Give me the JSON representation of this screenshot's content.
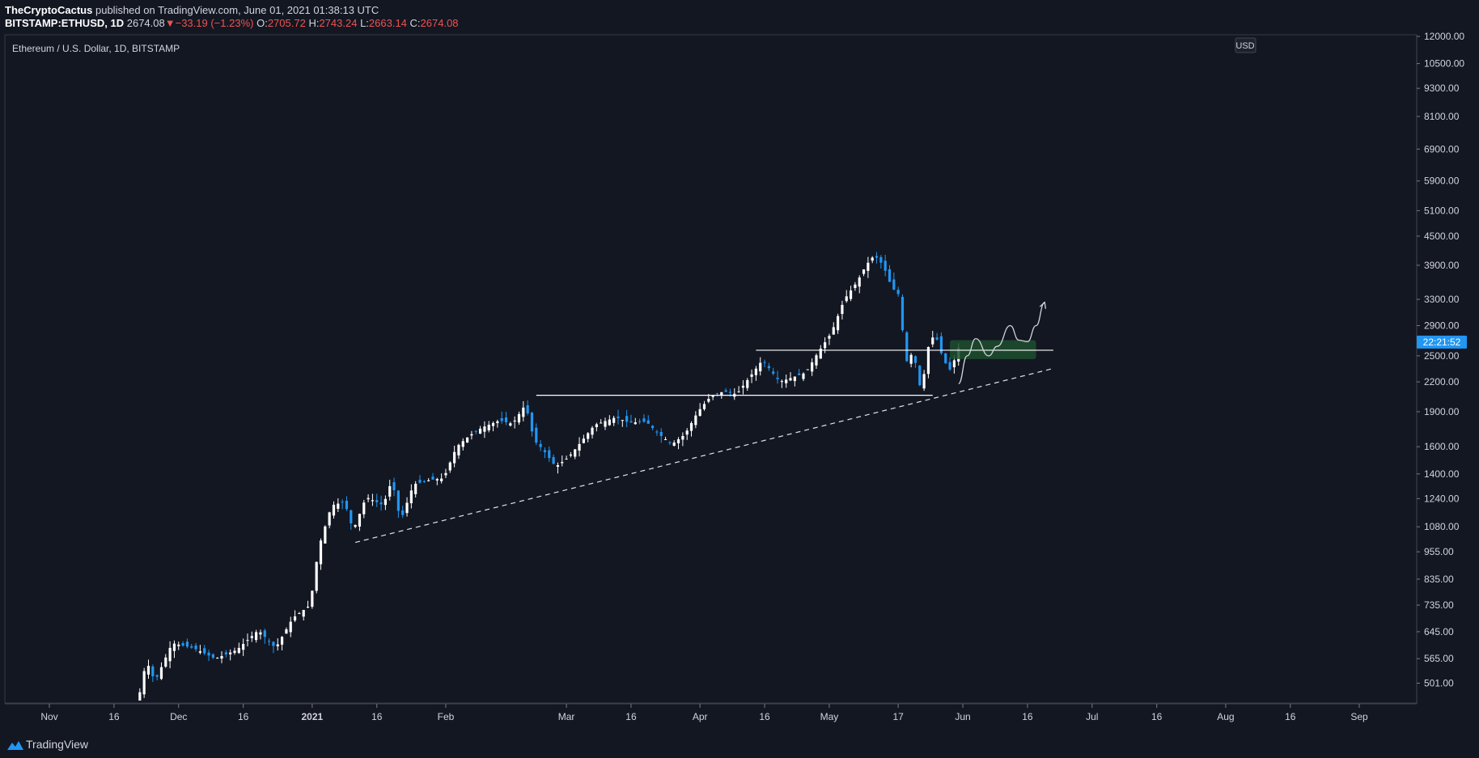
{
  "header": {
    "author": "TheCryptoCactus",
    "published": "published on TradingView.com, June 01, 2021 01:38:13 UTC",
    "symbol": "BITSTAMP:ETHUSD, 1D",
    "last": "2674.08",
    "change_arrow": "▼",
    "change": "−33.19 (−1.23%)",
    "o_label": "O:",
    "o": "2705.72",
    "h_label": "H:",
    "h": "2743.24",
    "l_label": "L:",
    "l": "2663.14",
    "c_label": "C:",
    "c": "2674.08"
  },
  "chart_data": {
    "type": "candlestick",
    "title": "Ethereum / U.S. Dollar, 1D, BITSTAMP",
    "currency": "USD",
    "y_scale": "log",
    "ylim": [
      460,
      12000
    ],
    "y_ticks": [
      "12000.00",
      "10500.00",
      "9300.00",
      "8100.00",
      "6900.00",
      "5900.00",
      "5100.00",
      "4500.00",
      "3900.00",
      "3300.00",
      "2900.00",
      "2500.00",
      "2200.00",
      "1900.00",
      "1600.00",
      "1400.00",
      "1240.00",
      "1080.00",
      "955.00",
      "835.00",
      "735.00",
      "645.00",
      "565.00",
      "501.00"
    ],
    "x_ticks": [
      {
        "label": "Nov",
        "date": "2020-11-01"
      },
      {
        "label": "16",
        "date": "2020-11-16"
      },
      {
        "label": "Dec",
        "date": "2020-12-01"
      },
      {
        "label": "16",
        "date": "2020-12-16"
      },
      {
        "label": "2021",
        "date": "2021-01-01",
        "bold": true
      },
      {
        "label": "16",
        "date": "2021-01-16"
      },
      {
        "label": "Feb",
        "date": "2021-02-01"
      },
      {
        "label": "Mar",
        "date": "2021-03-01"
      },
      {
        "label": "16",
        "date": "2021-03-16"
      },
      {
        "label": "Apr",
        "date": "2021-04-01"
      },
      {
        "label": "16",
        "date": "2021-04-16"
      },
      {
        "label": "May",
        "date": "2021-05-01"
      },
      {
        "label": "17",
        "date": "2021-05-17"
      },
      {
        "label": "Jun",
        "date": "2021-06-01"
      },
      {
        "label": "16",
        "date": "2021-06-16"
      },
      {
        "label": "Jul",
        "date": "2021-07-01"
      },
      {
        "label": "16",
        "date": "2021-07-16"
      },
      {
        "label": "Aug",
        "date": "2021-08-01"
      },
      {
        "label": "16",
        "date": "2021-08-16"
      },
      {
        "label": "Sep",
        "date": "2021-09-01"
      }
    ],
    "price_path": [
      [
        "2020-11-22",
        455
      ],
      [
        "2020-11-24",
        560
      ],
      [
        "2020-11-26",
        505
      ],
      [
        "2020-11-30",
        610
      ],
      [
        "2020-12-05",
        595
      ],
      [
        "2020-12-10",
        565
      ],
      [
        "2020-12-15",
        590
      ],
      [
        "2020-12-20",
        650
      ],
      [
        "2020-12-24",
        595
      ],
      [
        "2020-12-28",
        690
      ],
      [
        "2021-01-01",
        735
      ],
      [
        "2021-01-03",
        975
      ],
      [
        "2021-01-06",
        1200
      ],
      [
        "2021-01-09",
        1220
      ],
      [
        "2021-01-11",
        1060
      ],
      [
        "2021-01-14",
        1250
      ],
      [
        "2021-01-18",
        1200
      ],
      [
        "2021-01-20",
        1360
      ],
      [
        "2021-01-22",
        1110
      ],
      [
        "2021-01-25",
        1330
      ],
      [
        "2021-01-29",
        1360
      ],
      [
        "2021-02-01",
        1370
      ],
      [
        "2021-02-04",
        1600
      ],
      [
        "2021-02-07",
        1690
      ],
      [
        "2021-02-10",
        1760
      ],
      [
        "2021-02-14",
        1820
      ],
      [
        "2021-02-17",
        1790
      ],
      [
        "2021-02-20",
        1970
      ],
      [
        "2021-02-22",
        1650
      ],
      [
        "2021-02-24",
        1580
      ],
      [
        "2021-02-27",
        1450
      ],
      [
        "2021-03-02",
        1520
      ],
      [
        "2021-03-04",
        1600
      ],
      [
        "2021-03-08",
        1780
      ],
      [
        "2021-03-13",
        1850
      ],
      [
        "2021-03-16",
        1800
      ],
      [
        "2021-03-20",
        1810
      ],
      [
        "2021-03-23",
        1700
      ],
      [
        "2021-03-26",
        1620
      ],
      [
        "2021-03-29",
        1700
      ],
      [
        "2021-04-01",
        1900
      ],
      [
        "2021-04-04",
        2050
      ],
      [
        "2021-04-07",
        2100
      ],
      [
        "2021-04-10",
        2070
      ],
      [
        "2021-04-13",
        2250
      ],
      [
        "2021-04-16",
        2450
      ],
      [
        "2021-04-20",
        2200
      ],
      [
        "2021-04-23",
        2250
      ],
      [
        "2021-04-26",
        2300
      ],
      [
        "2021-04-29",
        2550
      ],
      [
        "2021-05-02",
        2800
      ],
      [
        "2021-05-05",
        3300
      ],
      [
        "2021-05-08",
        3600
      ],
      [
        "2021-05-10",
        3900
      ],
      [
        "2021-05-12",
        4100
      ],
      [
        "2021-05-14",
        3900
      ],
      [
        "2021-05-16",
        3500
      ],
      [
        "2021-05-18",
        3350
      ],
      [
        "2021-05-19",
        2400
      ],
      [
        "2021-05-21",
        2550
      ],
      [
        "2021-05-23",
        2050
      ],
      [
        "2021-05-24",
        2550
      ],
      [
        "2021-05-26",
        2800
      ],
      [
        "2021-05-28",
        2450
      ],
      [
        "2021-05-30",
        2300
      ],
      [
        "2021-05-31",
        2600
      ]
    ],
    "annotations": {
      "support_trendline": {
        "from": [
          "2021-01-11",
          1000
        ],
        "to": [
          "2021-06-22",
          2350
        ],
        "style": "dashed"
      },
      "horizontal_levels": [
        {
          "value": 2060,
          "from": "2021-02-22",
          "to": "2021-05-25"
        },
        {
          "value": 2570,
          "from": "2021-04-14",
          "to": "2021-06-22"
        }
      ],
      "support_zone": {
        "low": 2460,
        "high": 2700,
        "from": "2021-05-29",
        "to": "2021-06-18",
        "color": "#1f4f2e"
      },
      "projection_path": [
        [
          "2021-05-31",
          2180
        ],
        [
          "2021-06-02",
          2500
        ],
        [
          "2021-06-04",
          2720
        ],
        [
          "2021-06-07",
          2500
        ],
        [
          "2021-06-09",
          2620
        ],
        [
          "2021-06-12",
          2900
        ],
        [
          "2021-06-14",
          2700
        ],
        [
          "2021-06-16",
          2680
        ],
        [
          "2021-06-18",
          2900
        ],
        [
          "2021-06-20",
          3250
        ]
      ]
    },
    "last_price_label": "22:21:52",
    "last_price_value": 2674.08
  },
  "footer": {
    "brand": "TradingView"
  },
  "colors": {
    "background": "#131722",
    "up": "#ffffff",
    "down": "#2196f3",
    "price_badge": "#2196f3",
    "change_down": "#ef5350"
  }
}
